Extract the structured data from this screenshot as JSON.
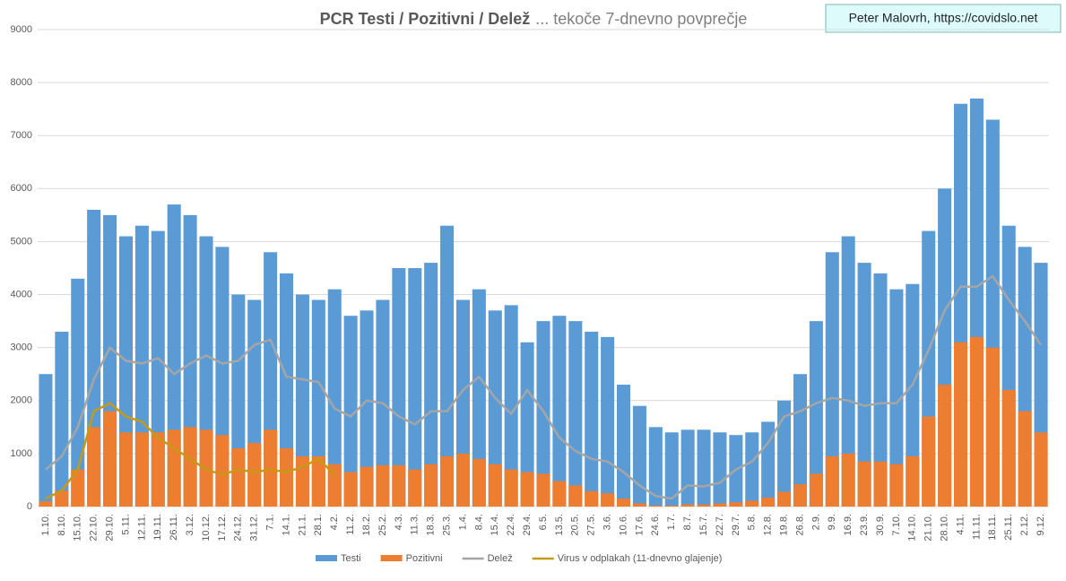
{
  "chart_data": {
    "type": "bar",
    "title": "PCR Testi / Pozitivni / Delež",
    "subtitle": "... tekoče 7-dnevno povprečje",
    "source": "Peter Malovrh, https://covidslo.net",
    "categories": [
      "1.10.",
      "8.10.",
      "15.10.",
      "22.10.",
      "29.10.",
      "5.11.",
      "12.11.",
      "19.11.",
      "26.11.",
      "3.12.",
      "10.12.",
      "17.12.",
      "24.12.",
      "31.12.",
      "7.1.",
      "14.1.",
      "21.1.",
      "28.1.",
      "4.2.",
      "11.2.",
      "18.2.",
      "25.2.",
      "4.3.",
      "11.3.",
      "18.3.",
      "25.3.",
      "1.4.",
      "8.4.",
      "15.4.",
      "22.4.",
      "29.4.",
      "6.5.",
      "13.5.",
      "20.5.",
      "27.5.",
      "3.6.",
      "10.6.",
      "17.6.",
      "24.6.",
      "1.7.",
      "8.7.",
      "15.7.",
      "22.7.",
      "29.7.",
      "5.8.",
      "12.8.",
      "19.8.",
      "26.8.",
      "2.9.",
      "9.9.",
      "16.9.",
      "23.9.",
      "30.9.",
      "7.10.",
      "14.10.",
      "21.10.",
      "28.10.",
      "4.11.",
      "11.11.",
      "18.11.",
      "25.11.",
      "2.12.",
      "9.12."
    ],
    "series": [
      {
        "name": "Testi",
        "type": "bar",
        "color": "#5b9bd5",
        "values": [
          2500,
          3300,
          4300,
          5600,
          5500,
          5100,
          5300,
          5200,
          5700,
          5500,
          5100,
          4900,
          4000,
          3900,
          4800,
          4400,
          4000,
          3900,
          4100,
          3600,
          3700,
          3900,
          4500,
          4500,
          4600,
          5300,
          3900,
          4100,
          3700,
          3800,
          3100,
          3500,
          3600,
          3500,
          3300,
          3200,
          2300,
          1900,
          1500,
          1400,
          1450,
          1450,
          1400,
          1350,
          1400,
          1600,
          2000,
          2500,
          3500,
          4800,
          5100,
          4600,
          4400,
          4100,
          4200,
          5200,
          6000,
          7600,
          7700,
          7300,
          5300,
          4900,
          4600
        ]
      },
      {
        "name": "Pozitivni",
        "type": "bar",
        "color": "#ed7d31",
        "values": [
          100,
          300,
          700,
          1500,
          1800,
          1400,
          1400,
          1400,
          1450,
          1500,
          1450,
          1350,
          1100,
          1200,
          1450,
          1100,
          950,
          950,
          800,
          650,
          750,
          780,
          780,
          700,
          800,
          950,
          1000,
          900,
          800,
          700,
          650,
          620,
          480,
          400,
          290,
          250,
          150,
          60,
          20,
          20,
          40,
          40,
          60,
          80,
          110,
          170,
          280,
          420,
          620,
          950,
          1000,
          850,
          850,
          800,
          950,
          1700,
          2300,
          3100,
          3200,
          3000,
          2200,
          1800,
          1400
        ]
      },
      {
        "name": "Delež",
        "type": "line",
        "color": "#a5a5a5",
        "values": [
          700,
          950,
          1500,
          2400,
          3000,
          2750,
          2700,
          2800,
          2500,
          2700,
          2850,
          2700,
          2750,
          3050,
          3150,
          2450,
          2400,
          2350,
          1850,
          1700,
          2000,
          1950,
          1700,
          1550,
          1800,
          1800,
          2200,
          2450,
          2050,
          1750,
          2200,
          1800,
          1300,
          1050,
          900,
          850,
          650,
          400,
          200,
          150,
          400,
          380,
          450,
          700,
          850,
          1200,
          1700,
          1800,
          1950,
          2050,
          2000,
          1900,
          1950,
          1950,
          2300,
          2950,
          3700,
          4150,
          4150,
          4350,
          3900,
          3500,
          3050
        ]
      },
      {
        "name": "Virus v odplakah (11-dnevno glajenje)",
        "type": "line",
        "color": "#c49a16",
        "values": [
          150,
          300,
          700,
          1800,
          1950,
          1700,
          1600,
          1300,
          1100,
          900,
          700,
          600,
          700,
          650,
          700,
          650,
          750,
          900,
          600,
          null,
          null,
          null,
          null,
          null,
          null,
          null,
          null,
          null,
          null,
          null,
          null,
          null,
          null,
          null,
          null,
          null,
          null,
          null,
          null,
          null,
          null,
          null,
          null,
          null,
          null,
          null,
          null,
          null,
          null,
          null,
          null,
          null,
          null,
          null,
          null,
          null,
          null,
          null,
          null,
          null,
          null,
          null,
          null
        ]
      }
    ],
    "ylim": [
      0,
      9000
    ],
    "yticks": [
      0,
      1000,
      2000,
      3000,
      4000,
      5000,
      6000,
      7000,
      8000,
      9000
    ],
    "grid": true
  }
}
